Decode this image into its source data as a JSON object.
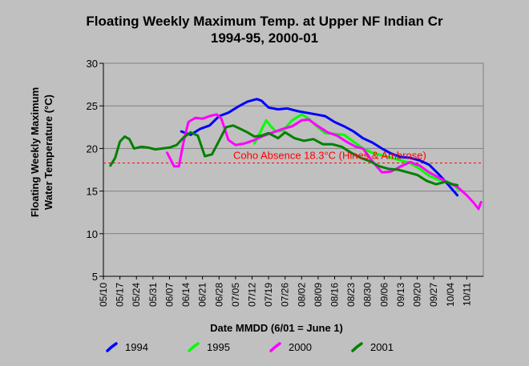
{
  "chart_data": {
    "type": "line",
    "title": "Floating Weekly Maximum Temp. at Upper NF Indian Cr",
    "subtitle": "1994-95, 2000-01",
    "xlabel": "Date MMDD (6/01 = June 1)",
    "ylabel": "Floating Weekly Maximum Water Temperature (°C)",
    "ylim": [
      5,
      30
    ],
    "yticks": [
      5,
      10,
      15,
      20,
      25,
      30
    ],
    "xlim": [
      "05/10",
      "10/18"
    ],
    "xticks": [
      "05/10",
      "05/17",
      "05/24",
      "05/31",
      "06/07",
      "06/14",
      "06/21",
      "06/28",
      "07/05",
      "07/12",
      "07/19",
      "07/26",
      "08/02",
      "08/09",
      "08/16",
      "08/23",
      "08/30",
      "09/06",
      "09/13",
      "09/20",
      "09/27",
      "10/04",
      "10/11"
    ],
    "grid": "horizontal",
    "legend_position": "bottom",
    "threshold": {
      "value": 18.3,
      "label": "Coho Absence 18.3°C (Hines & Ambrose)",
      "color": "#ff0000"
    },
    "series": [
      {
        "name": "1994",
        "color": "#0000ff",
        "x": [
          "06/12",
          "06/16",
          "06/20",
          "06/24",
          "06/28",
          "07/02",
          "07/06",
          "07/10",
          "07/14",
          "07/16",
          "07/19",
          "07/23",
          "07/27",
          "07/31",
          "08/04",
          "08/08",
          "08/12",
          "08/16",
          "08/20",
          "08/24",
          "08/28",
          "09/01",
          "09/05",
          "09/09",
          "09/13",
          "09/17",
          "09/21",
          "09/25",
          "09/29",
          "10/03",
          "10/07"
        ],
        "y": [
          22.0,
          21.6,
          22.3,
          22.7,
          23.8,
          24.2,
          24.9,
          25.5,
          25.8,
          25.6,
          24.8,
          24.6,
          24.7,
          24.4,
          24.2,
          24.0,
          23.8,
          23.1,
          22.6,
          22.0,
          21.2,
          20.7,
          20.0,
          19.4,
          19.0,
          18.9,
          18.6,
          18.1,
          17.0,
          15.8,
          14.5
        ]
      },
      {
        "name": "1995",
        "color": "#00ff00",
        "x": [
          "07/13",
          "07/16",
          "07/18",
          "07/20",
          "07/22",
          "07/25",
          "07/29",
          "08/02",
          "08/05",
          "08/08",
          "08/12",
          "08/16",
          "08/20",
          "08/24",
          "08/28",
          "09/01",
          "09/05",
          "09/09",
          "09/13",
          "09/17",
          "09/21",
          "09/25",
          "09/29",
          "10/02",
          "10/05",
          "10/07",
          "10/09"
        ],
        "y": [
          20.6,
          22.2,
          23.3,
          22.6,
          22.0,
          22.1,
          23.3,
          24.0,
          23.5,
          22.7,
          21.8,
          21.7,
          21.6,
          20.8,
          20.0,
          19.5,
          19.2,
          18.9,
          18.6,
          18.3,
          17.6,
          16.8,
          16.3,
          16.2,
          15.8,
          15.3,
          15.0
        ]
      },
      {
        "name": "2000",
        "color": "#ff00ff",
        "x": [
          "06/06",
          "06/09",
          "06/11",
          "06/13",
          "06/15",
          "06/18",
          "06/21",
          "06/24",
          "06/27",
          "06/29",
          "07/02",
          "07/05",
          "07/09",
          "07/13",
          "07/17",
          "07/21",
          "07/25",
          "07/29",
          "08/02",
          "08/05",
          "08/09",
          "08/13",
          "08/17",
          "08/21",
          "08/25",
          "08/28",
          "09/01",
          "09/05",
          "09/09",
          "09/13",
          "09/17",
          "09/21",
          "09/25",
          "09/29",
          "10/03",
          "10/07",
          "10/11",
          "10/14",
          "10/16",
          "10/17"
        ],
        "y": [
          19.5,
          17.9,
          17.9,
          20.8,
          23.1,
          23.6,
          23.5,
          23.8,
          24.0,
          23.5,
          21.0,
          20.4,
          20.6,
          21.0,
          21.5,
          21.9,
          22.3,
          22.6,
          23.3,
          23.4,
          22.6,
          21.9,
          21.5,
          20.8,
          20.2,
          20.0,
          18.5,
          17.2,
          17.3,
          17.9,
          18.4,
          18.0,
          17.2,
          16.6,
          16.0,
          15.5,
          14.5,
          13.6,
          12.9,
          13.7
        ]
      },
      {
        "name": "2001",
        "color": "#008000",
        "x": [
          "05/13",
          "05/15",
          "05/17",
          "05/19",
          "05/21",
          "05/23",
          "05/26",
          "05/29",
          "06/01",
          "06/04",
          "06/07",
          "06/10",
          "06/13",
          "06/16",
          "06/19",
          "06/22",
          "06/25",
          "06/28",
          "07/01",
          "07/04",
          "07/07",
          "07/10",
          "07/13",
          "07/16",
          "07/19",
          "07/23",
          "07/26",
          "07/30",
          "08/03",
          "08/07",
          "08/11",
          "08/15",
          "08/19",
          "08/23",
          "08/27",
          "08/31",
          "09/04",
          "09/08",
          "09/12",
          "09/16",
          "09/20",
          "09/24",
          "09/28",
          "10/02",
          "10/05",
          "10/07"
        ],
        "y": [
          18.0,
          18.9,
          20.8,
          21.4,
          21.1,
          20.0,
          20.2,
          20.1,
          19.9,
          20.0,
          20.1,
          20.4,
          21.3,
          21.9,
          21.5,
          19.1,
          19.3,
          20.9,
          22.5,
          22.7,
          22.3,
          21.9,
          21.4,
          21.5,
          21.8,
          21.2,
          21.9,
          21.2,
          20.9,
          21.1,
          20.5,
          20.5,
          20.2,
          19.5,
          18.9,
          18.5,
          17.9,
          17.6,
          17.5,
          17.2,
          16.9,
          16.2,
          15.8,
          16.1,
          15.8,
          15.7
        ]
      }
    ]
  }
}
